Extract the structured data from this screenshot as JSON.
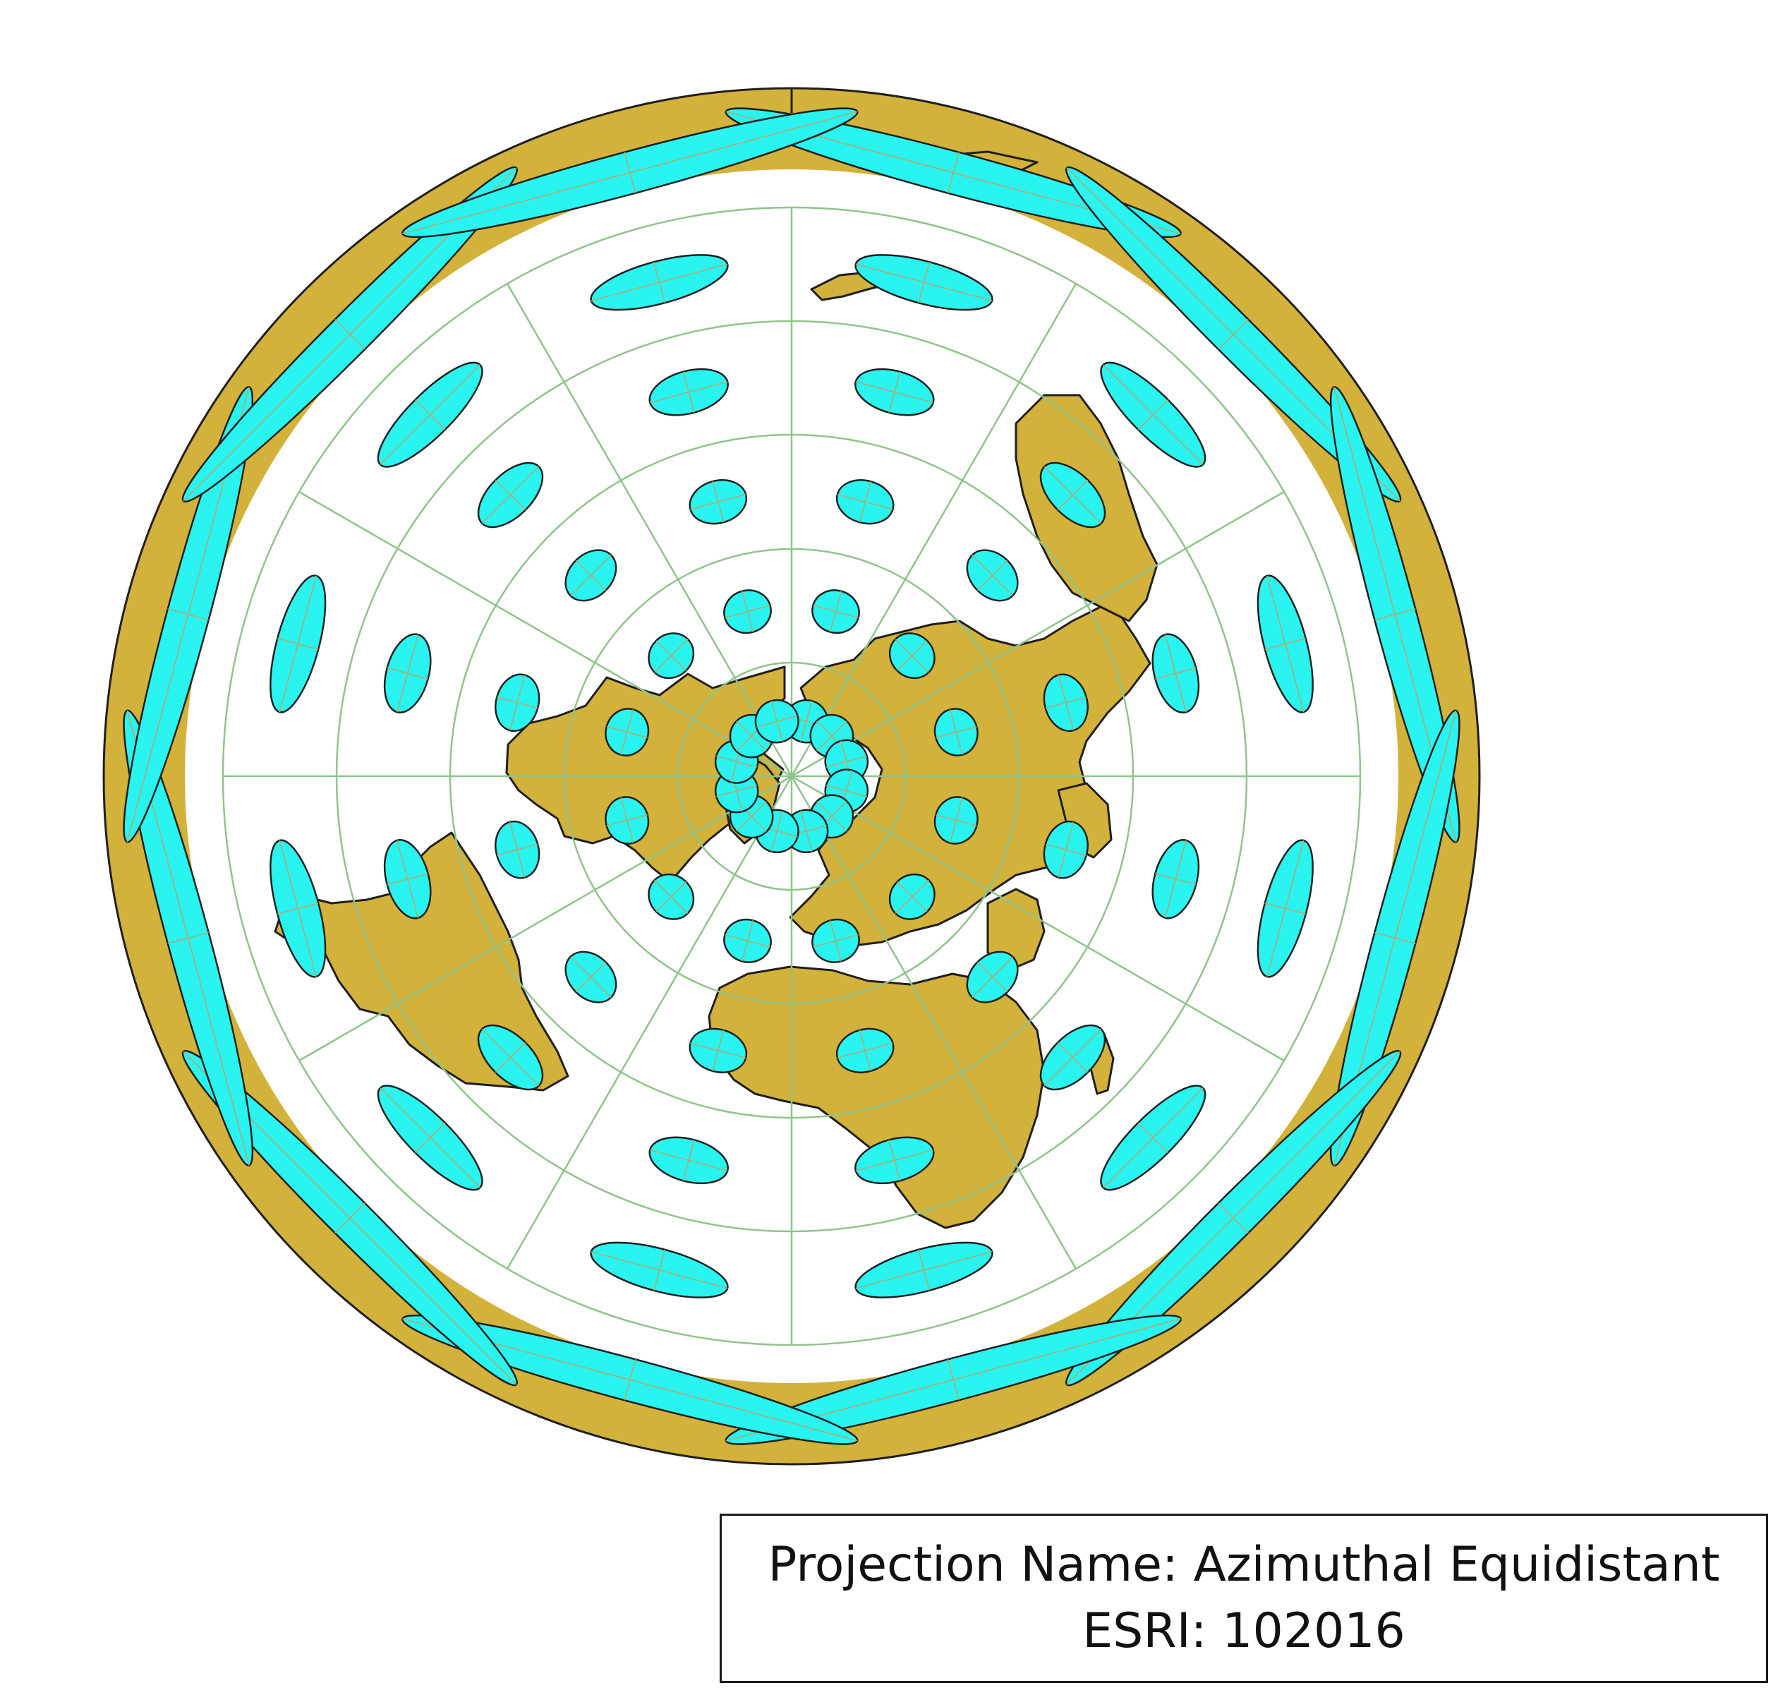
{
  "map": {
    "projection_type": "azimuthal-equidistant-polar",
    "center": "north-pole",
    "layers": [
      "outer-ring",
      "land",
      "graticule",
      "tissot-indicatrices"
    ],
    "colors": {
      "land": "#d3b23c",
      "outline": "#1f1f1f",
      "graticule": "#8fc48b",
      "indicatrix_fill": "#29f4f0",
      "ocean": "#ffffff"
    },
    "graticule": {
      "latitude_circles_deg": [
        60,
        30,
        0,
        -30,
        -60
      ],
      "meridian_step_deg": 30
    },
    "tissot": {
      "latitudes_deg": [
        75,
        45,
        15,
        -15,
        -45,
        -75
      ],
      "meridian_step_deg": 30,
      "shape": "ellipse"
    }
  },
  "info": {
    "line1": "Projection Name: Azimuthal Equidistant",
    "line2": "ESRI: 102016"
  }
}
